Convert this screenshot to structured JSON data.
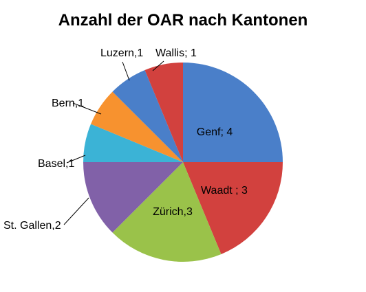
{
  "chart_data": {
    "type": "pie",
    "title": "Anzahl der OAR nach Kantonen",
    "slices": [
      {
        "category": "Genf",
        "value": 4,
        "label": "Genf; 4",
        "color": "#4A7FC9"
      },
      {
        "category": "Waadt",
        "value": 3,
        "label": "Waadt ; 3",
        "color": "#D2413E"
      },
      {
        "category": "Zürich",
        "value": 3,
        "label": "Zürich,3",
        "color": "#9AC24A"
      },
      {
        "category": "St. Gallen",
        "value": 2,
        "label": "St. Gallen,2",
        "color": "#8161A8"
      },
      {
        "category": "Basel",
        "value": 1,
        "label": "Basel,1",
        "color": "#3BB3D6"
      },
      {
        "category": "Bern",
        "value": 1,
        "label": "Bern,1",
        "color": "#F7922F"
      },
      {
        "category": "Luzern",
        "value": 1,
        "label": "Luzern,1",
        "color": "#4A7FC9"
      },
      {
        "category": "Wallis",
        "value": 1,
        "label": "Wallis; 1",
        "color": "#D2413E"
      }
    ]
  }
}
